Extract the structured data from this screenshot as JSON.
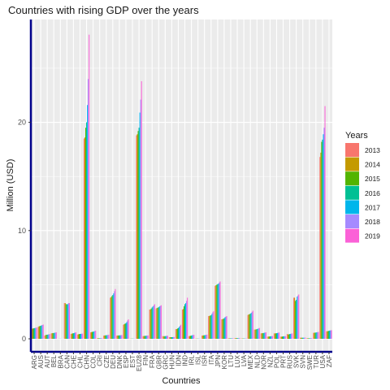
{
  "chart_data": {
    "type": "bar",
    "title": "Countries with rising GDP over the years",
    "xlabel": "Countries",
    "ylabel": "Million (USD)",
    "ylim": [
      -1.2,
      29.5
    ],
    "yticks": [
      0,
      10,
      20
    ],
    "legend": {
      "title": "Years",
      "position": "right"
    },
    "categories": [
      "ARG",
      "AUS",
      "AUT",
      "BEL",
      "BRA",
      "CAN",
      "CHE",
      "CHL",
      "CHN",
      "COL",
      "CRI",
      "CZE",
      "DEU",
      "DNK",
      "ESP",
      "EST",
      "EU28",
      "FIN",
      "FRA",
      "GBR",
      "GRC",
      "HUN",
      "IDN",
      "IND",
      "IRL",
      "ISL",
      "ISR",
      "ITA",
      "JPN",
      "KOR",
      "LTU",
      "LUX",
      "LVA",
      "MEX",
      "NLD",
      "NOR",
      "NZL",
      "POL",
      "PRT",
      "RUS",
      "SVK",
      "SVN",
      "SWE",
      "TUR",
      "USA",
      "ZAF"
    ],
    "series": [
      {
        "name": "2013",
        "color": "#F8766D",
        "values": [
          0.9,
          1.1,
          0.3,
          0.5,
          0.01,
          3.3,
          0.45,
          0.4,
          18.5,
          0.6,
          0.05,
          0.3,
          3.8,
          0.3,
          1.3,
          0.02,
          18.8,
          0.25,
          2.7,
          2.8,
          0.25,
          0.15,
          0.9,
          2.7,
          0.25,
          0.02,
          0.3,
          2.1,
          4.9,
          1.8,
          0.04,
          0.06,
          0.03,
          2.2,
          0.85,
          0.5,
          0.2,
          0.5,
          0.2,
          0.45,
          3.8,
          0.1,
          0.05,
          0.55,
          16.8,
          0.7
        ]
      },
      {
        "name": "2014",
        "color": "#C49A00",
        "values": [
          0.95,
          1.15,
          0.35,
          0.52,
          0.01,
          3.3,
          0.48,
          0.42,
          18.6,
          0.62,
          0.05,
          0.31,
          3.85,
          0.31,
          1.35,
          0.02,
          18.9,
          0.26,
          2.72,
          2.85,
          0.24,
          0.15,
          0.9,
          2.75,
          0.26,
          0.02,
          0.31,
          2.12,
          4.95,
          1.82,
          0.04,
          0.06,
          0.03,
          2.25,
          0.86,
          0.52,
          0.21,
          0.5,
          0.2,
          0.4,
          3.8,
          0.1,
          0.05,
          0.56,
          17.2,
          0.7
        ]
      },
      {
        "name": "2015",
        "color": "#53B400",
        "values": [
          0.96,
          1.18,
          0.37,
          0.53,
          0.01,
          3.2,
          0.5,
          0.44,
          19.5,
          0.64,
          0.05,
          0.32,
          3.95,
          0.31,
          1.4,
          0.02,
          19.2,
          0.27,
          2.8,
          2.88,
          0.24,
          0.15,
          0.95,
          3.0,
          0.28,
          0.02,
          0.32,
          2.14,
          5.0,
          1.85,
          0.04,
          0.06,
          0.03,
          2.28,
          0.87,
          0.52,
          0.22,
          0.51,
          0.21,
          0.42,
          3.5,
          0.1,
          0.05,
          0.57,
          18.2,
          0.72
        ]
      },
      {
        "name": "2016",
        "color": "#00C094",
        "values": [
          0.98,
          1.2,
          0.38,
          0.54,
          0.01,
          3.2,
          0.52,
          0.45,
          20.0,
          0.66,
          0.05,
          0.33,
          4.05,
          0.32,
          1.45,
          0.02,
          19.5,
          0.28,
          2.9,
          2.92,
          0.25,
          0.15,
          1.0,
          3.2,
          0.3,
          0.02,
          0.33,
          2.18,
          5.05,
          1.9,
          0.04,
          0.06,
          0.03,
          2.32,
          0.9,
          0.54,
          0.23,
          0.52,
          0.22,
          0.44,
          3.6,
          0.1,
          0.05,
          0.58,
          18.4,
          0.74
        ]
      },
      {
        "name": "2017",
        "color": "#00B6EB",
        "values": [
          1.0,
          1.25,
          0.4,
          0.56,
          0.01,
          3.2,
          0.55,
          0.46,
          21.6,
          0.68,
          0.05,
          0.34,
          4.2,
          0.33,
          1.55,
          0.02,
          20.9,
          0.29,
          3.0,
          3.0,
          0.26,
          0.15,
          1.1,
          3.3,
          0.33,
          0.02,
          0.35,
          2.3,
          5.1,
          2.0,
          0.04,
          0.06,
          0.03,
          2.4,
          0.93,
          0.56,
          0.24,
          0.54,
          0.23,
          0.46,
          3.9,
          0.1,
          0.05,
          0.6,
          18.9,
          0.77
        ]
      },
      {
        "name": "2018",
        "color": "#A58AFF",
        "values": [
          1.02,
          1.28,
          0.42,
          0.58,
          0.01,
          3.3,
          0.57,
          0.47,
          24.0,
          0.72,
          0.06,
          0.36,
          4.4,
          0.34,
          1.7,
          0.02,
          22.1,
          0.3,
          3.1,
          3.05,
          0.27,
          0.16,
          1.2,
          3.5,
          0.35,
          0.02,
          0.37,
          2.45,
          5.2,
          2.05,
          0.05,
          0.07,
          0.03,
          2.5,
          0.96,
          0.58,
          0.25,
          0.56,
          0.24,
          0.48,
          4.0,
          0.11,
          0.06,
          0.62,
          19.5,
          0.78
        ]
      },
      {
        "name": "2019",
        "color": "#FB61D7",
        "values": [
          1.05,
          1.32,
          0.44,
          0.6,
          0.01,
          3.3,
          0.6,
          0.48,
          28.1,
          0.75,
          0.06,
          0.38,
          4.6,
          0.35,
          1.8,
          0.02,
          23.8,
          0.31,
          3.2,
          3.1,
          0.28,
          0.16,
          1.3,
          3.8,
          0.37,
          0.02,
          0.39,
          2.55,
          5.3,
          2.1,
          0.05,
          0.07,
          0.03,
          2.6,
          1.0,
          0.6,
          0.26,
          0.58,
          0.25,
          0.5,
          4.1,
          0.11,
          0.06,
          0.64,
          21.5,
          0.8
        ]
      }
    ]
  }
}
